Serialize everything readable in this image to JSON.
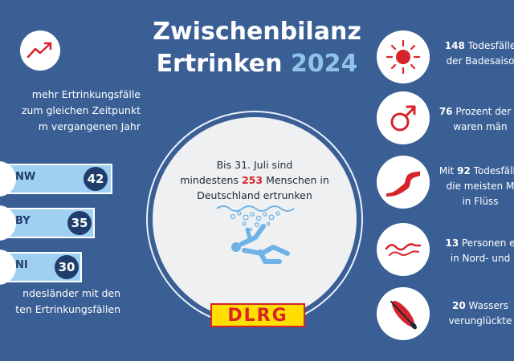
{
  "title": {
    "line1": "Zwischenbilanz",
    "line2_word": "Ertrinken",
    "year": "2024"
  },
  "trend": {
    "icon": "trend-up-icon",
    "text_lines": [
      "mehr Ertrinkungsfälle",
      "zum gleichen Zeitpunkt",
      "m vergangenen Jahr"
    ]
  },
  "states": [
    {
      "code": "NW",
      "value": "42",
      "fill": 1.0
    },
    {
      "code": "BY",
      "value": "35",
      "fill": 0.84
    },
    {
      "code": "NI",
      "value": "30",
      "fill": 0.72
    }
  ],
  "states_caption_lines": [
    "ndesländer mit den",
    "ten Ertrinkungsfällen"
  ],
  "center": {
    "line1": "Bis 31. Juli sind",
    "line2_pre": "mindestens",
    "number": "253",
    "line2_post": "Menschen in",
    "line3": "Deutschland ertrunken",
    "icon": "drowning-person-icon"
  },
  "logo_text": "DLRG",
  "facts": [
    {
      "icon": "sun-icon",
      "number": "148",
      "line1_rest": "Todesfälle",
      "line2": "der Badesaiso"
    },
    {
      "icon": "male-symbol-icon",
      "number": "76",
      "line1_rest": "Prozent der D",
      "line2": "waren män"
    },
    {
      "icon": "river-icon",
      "number": "92",
      "line1_pre": "Mit",
      "line1_rest": "Todesfälle",
      "line2": "die meisten M",
      "line3": "in Flüss"
    },
    {
      "icon": "waves-icon",
      "number": "13",
      "line1_rest": "Personen e",
      "line2": "in Nord- und"
    },
    {
      "icon": "paddleboard-icon",
      "number": "20",
      "line1_rest": "Wassers",
      "line2": "verunglückte"
    }
  ],
  "colors": {
    "background": "#3a5f95",
    "accent_light_blue": "#8fc3ea",
    "dark_navy": "#1f3e6b",
    "red": "#d6242a",
    "yellow": "#ffde00"
  }
}
